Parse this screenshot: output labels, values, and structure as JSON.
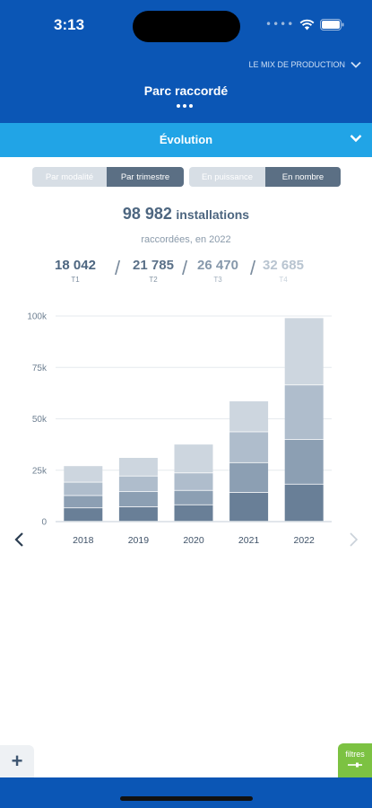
{
  "status": {
    "time": "3:13"
  },
  "header": {
    "mix_link": "LE MIX DE PRODUCTION",
    "title": "Parc raccordé"
  },
  "section": {
    "title": "Évolution"
  },
  "toggles": {
    "group1": [
      "Par modalité",
      "Par trimestre"
    ],
    "group1_active": 1,
    "group2": [
      "En puissance",
      "En nombre"
    ],
    "group2_active": 1
  },
  "summary": {
    "total": "98 982",
    "unit": "installations",
    "subtitle": "raccordées, en 2022",
    "quarters": [
      {
        "value": "18 042",
        "label": "T1"
      },
      {
        "value": "21 785",
        "label": "T2"
      },
      {
        "value": "26 470",
        "label": "T3"
      },
      {
        "value": "32 685",
        "label": "T4"
      }
    ]
  },
  "chart_data": {
    "type": "bar",
    "stacked": true,
    "categories": [
      "2018",
      "2019",
      "2020",
      "2021",
      "2022"
    ],
    "series": [
      {
        "name": "T1",
        "values": [
          6500,
          7000,
          8000,
          14000,
          18042
        ],
        "color": "#697f97"
      },
      {
        "name": "T2",
        "values": [
          6000,
          7500,
          7000,
          14500,
          21785
        ],
        "color": "#8c9fb3"
      },
      {
        "name": "T3",
        "values": [
          6500,
          7500,
          8500,
          15000,
          26470
        ],
        "color": "#afbdcc"
      },
      {
        "name": "T4",
        "values": [
          8000,
          9000,
          14000,
          15000,
          32685
        ],
        "color": "#cdd6df"
      }
    ],
    "ylim": [
      0,
      100000
    ],
    "yticks": [
      "0",
      "25k",
      "50k",
      "75k",
      "100k"
    ],
    "grid": true
  },
  "bottom": {
    "plus": "+",
    "filters": "filtres"
  }
}
